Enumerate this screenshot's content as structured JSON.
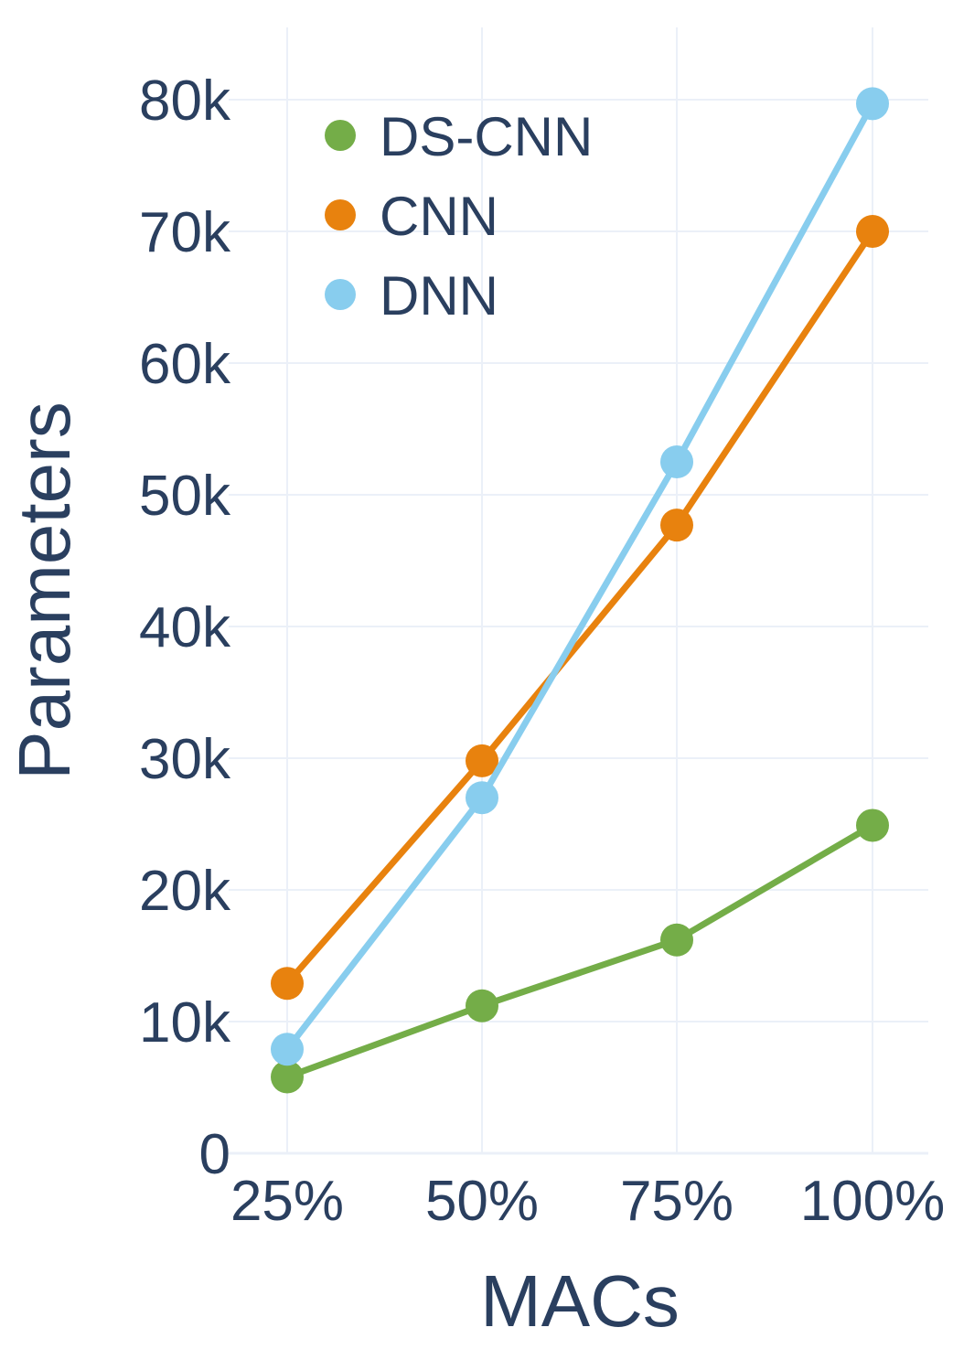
{
  "chart_data": {
    "type": "line",
    "title": "",
    "xlabel": "MACs",
    "ylabel": "Parameters",
    "categories": [
      "25%",
      "50%",
      "75%",
      "100%"
    ],
    "y_ticks": [
      0,
      10000,
      20000,
      30000,
      40000,
      50000,
      60000,
      70000,
      80000
    ],
    "y_tick_labels": [
      "0",
      "10k",
      "20k",
      "30k",
      "40k",
      "50k",
      "60k",
      "70k",
      "80k"
    ],
    "ylim": [
      0,
      82000
    ],
    "grid": true,
    "legend_position": "top-left",
    "series": [
      {
        "name": "DS-CNN",
        "color": "#74ad48",
        "values": [
          5800,
          11200,
          16200,
          24900
        ]
      },
      {
        "name": "CNN",
        "color": "#e8820e",
        "values": [
          12900,
          29800,
          47700,
          70000
        ]
      },
      {
        "name": "DNN",
        "color": "#88cdee",
        "values": [
          7900,
          27000,
          52500,
          79700
        ]
      }
    ],
    "axis_text_color": "#2a3f5f",
    "grid_color": "#ebf0f8"
  }
}
